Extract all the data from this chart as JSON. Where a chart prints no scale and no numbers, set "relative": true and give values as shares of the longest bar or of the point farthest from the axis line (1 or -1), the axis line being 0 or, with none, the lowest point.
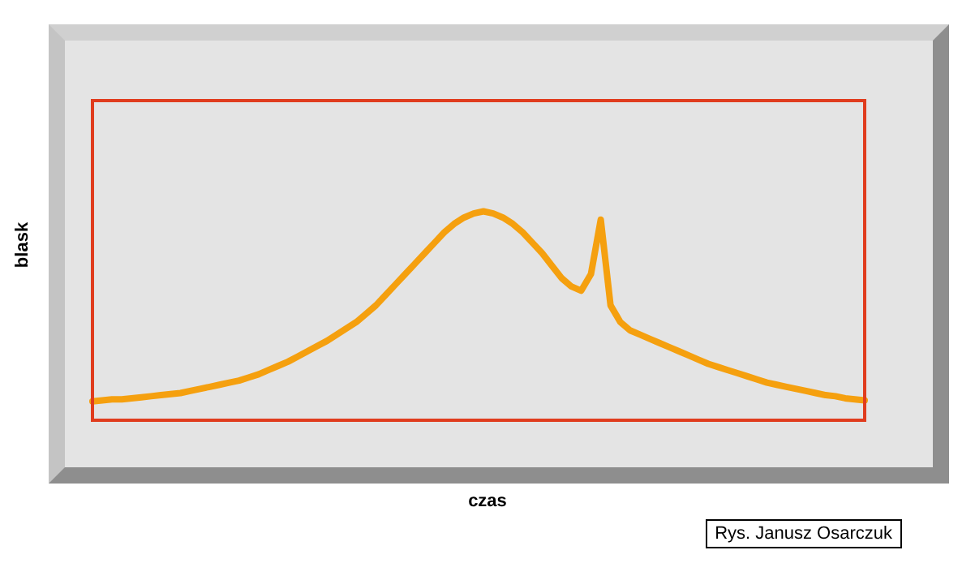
{
  "chart_data": {
    "type": "line",
    "relative": true,
    "xlabel": "czas",
    "ylabel": "blask",
    "tick_labels": false,
    "legend": false,
    "marker": "none",
    "line_style": "solid",
    "annotations": [
      "Rys. Janusz Osarczuk"
    ],
    "categories": [
      null,
      null,
      null,
      null,
      null,
      null,
      null,
      null,
      null,
      null,
      null,
      null,
      null,
      null,
      null,
      null,
      null,
      null,
      null,
      null,
      null,
      null,
      null,
      null,
      null,
      null,
      null,
      null,
      null,
      null,
      null,
      null,
      null,
      null,
      null,
      null,
      null,
      null,
      null,
      null,
      null,
      null,
      null,
      null,
      null,
      null,
      null,
      null,
      null,
      null,
      null,
      null,
      null,
      null,
      null,
      null,
      null,
      null,
      null,
      null,
      null,
      null,
      null,
      null,
      null,
      null,
      null,
      null,
      null,
      null,
      null,
      null,
      null,
      null,
      null,
      null,
      null,
      null,
      null,
      null
    ],
    "series": [
      {
        "color": "#f5a00f",
        "values": [
          0.09,
          0.095,
          0.1,
          0.1,
          0.105,
          0.11,
          0.115,
          0.12,
          0.125,
          0.13,
          0.14,
          0.15,
          0.16,
          0.17,
          0.18,
          0.19,
          0.205,
          0.22,
          0.24,
          0.26,
          0.28,
          0.305,
          0.33,
          0.355,
          0.38,
          0.41,
          0.44,
          0.47,
          0.51,
          0.55,
          0.6,
          0.65,
          0.7,
          0.75,
          0.8,
          0.85,
          0.9,
          0.94,
          0.97,
          0.99,
          1.0,
          0.99,
          0.97,
          0.94,
          0.9,
          0.85,
          0.8,
          0.74,
          0.68,
          0.64,
          0.62,
          0.7,
          0.96,
          0.55,
          0.47,
          0.43,
          0.41,
          0.39,
          0.37,
          0.35,
          0.33,
          0.31,
          0.29,
          0.27,
          0.255,
          0.24,
          0.225,
          0.21,
          0.195,
          0.18,
          0.17,
          0.16,
          0.15,
          0.14,
          0.13,
          0.12,
          0.115,
          0.105,
          0.1,
          0.095
        ]
      }
    ]
  }
}
